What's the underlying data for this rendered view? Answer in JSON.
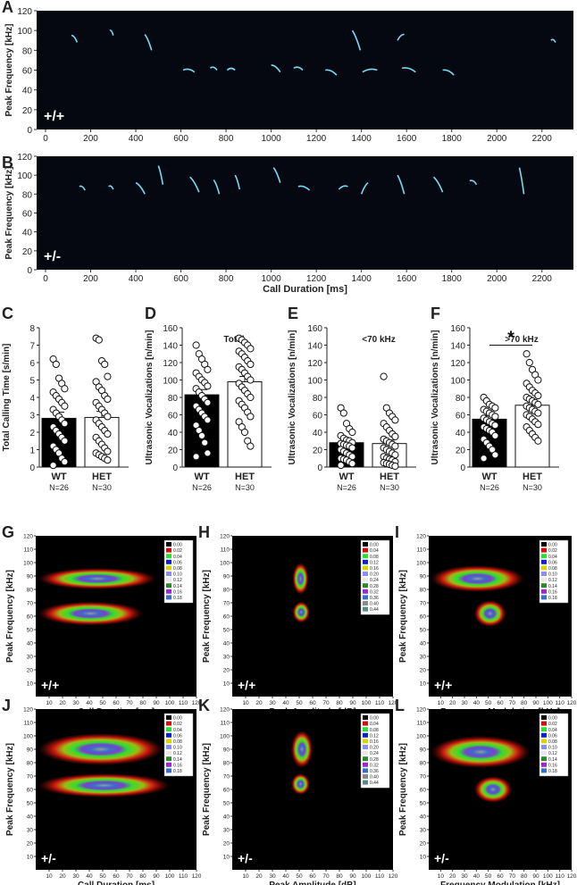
{
  "panel_letters": [
    "A",
    "B",
    "C",
    "D",
    "E",
    "F",
    "G",
    "H",
    "I",
    "J",
    "K",
    "L"
  ],
  "spectrograms": [
    {
      "letter": "A",
      "genotype": "+/+",
      "ylabel": "Peak Frequency [kHz]",
      "yticks": [
        "0",
        "20",
        "40",
        "60",
        "80",
        "100",
        "120"
      ],
      "xticks": [
        "0",
        "200",
        "400",
        "600",
        "800",
        "1000",
        "1200",
        "1400",
        "1600",
        "1800",
        "2000",
        "2200"
      ],
      "xlabel": ""
    },
    {
      "letter": "B",
      "genotype": "+/-",
      "ylabel": "Peak Frequency [kHz]",
      "yticks": [
        "0",
        "20",
        "40",
        "60",
        "80",
        "100",
        "120"
      ],
      "xticks": [
        "0",
        "200",
        "400",
        "600",
        "800",
        "1000",
        "1200",
        "1400",
        "1600",
        "1800",
        "2000",
        "2200"
      ],
      "xlabel": "Call Duration [ms]"
    }
  ],
  "chart_data": [
    {
      "type": "bar",
      "panel": "C",
      "title": "",
      "ylabel": "Total Calling Time [s/min]",
      "ylim": [
        0,
        8
      ],
      "yticks": [
        "0",
        "1",
        "2",
        "3",
        "4",
        "5",
        "6",
        "7",
        "8"
      ],
      "categories": [
        "WT",
        "HET"
      ],
      "ns": [
        "N=26",
        "N=30"
      ],
      "values": [
        2.8,
        2.85
      ],
      "errors": [
        0.35,
        0.35
      ],
      "points": [
        [
          6.2,
          5.9,
          5.1,
          4.8,
          4.5,
          4.3,
          4.1,
          3.9,
          3.7,
          3.5,
          3.3,
          3.1,
          2.9,
          2.7,
          2.5,
          2.3,
          2.1,
          1.9,
          1.7,
          1.5,
          1.2,
          1.0,
          0.8,
          0.5,
          0.3,
          0.1
        ],
        [
          7.4,
          7.3,
          6.1,
          5.9,
          5.2,
          4.9,
          4.6,
          4.4,
          4.1,
          3.9,
          3.7,
          3.5,
          3.3,
          3.1,
          2.9,
          2.7,
          2.5,
          2.3,
          2.1,
          1.9,
          1.7,
          1.5,
          1.3,
          1.1,
          0.9,
          0.8,
          0.7,
          0.6,
          0.5,
          0.4
        ]
      ],
      "star": ""
    },
    {
      "type": "bar",
      "panel": "D",
      "title": "Total",
      "ylabel": "Ultrasonic Vocalizations [n/min]",
      "ylim": [
        0,
        160
      ],
      "yticks": [
        "0",
        "20",
        "40",
        "60",
        "80",
        "100",
        "120",
        "140",
        "160"
      ],
      "categories": [
        "WT",
        "HET"
      ],
      "ns": [
        "N=26",
        "N=30"
      ],
      "values": [
        83,
        98
      ],
      "errors": [
        6,
        6
      ],
      "points": [
        [
          140,
          130,
          124,
          118,
          112,
          108,
          104,
          100,
          97,
          93,
          90,
          86,
          82,
          78,
          74,
          70,
          66,
          62,
          58,
          54,
          48,
          42,
          36,
          28,
          16,
          12
        ],
        [
          148,
          146,
          143,
          140,
          136,
          133,
          130,
          126,
          122,
          118,
          115,
          112,
          108,
          104,
          100,
          96,
          92,
          88,
          84,
          80,
          76,
          72,
          68,
          63,
          58,
          52,
          46,
          40,
          30,
          24
        ]
      ],
      "star": ""
    },
    {
      "type": "bar",
      "panel": "E",
      "title": "<70 kHz",
      "ylabel": "Ultrasonic Vocalizations [n/min]",
      "ylim": [
        0,
        160
      ],
      "yticks": [
        "0",
        "20",
        "40",
        "60",
        "80",
        "100",
        "120",
        "140",
        "160"
      ],
      "categories": [
        "WT",
        "HET"
      ],
      "ns": [
        "N=26",
        "N=30"
      ],
      "values": [
        28,
        27
      ],
      "errors": [
        4,
        4
      ],
      "points": [
        [
          68,
          62,
          50,
          44,
          40,
          36,
          33,
          31,
          30,
          28,
          27,
          26,
          25,
          24,
          22,
          20,
          18,
          16,
          14,
          12,
          10,
          9,
          8,
          6,
          4,
          2
        ],
        [
          104,
          68,
          62,
          58,
          54,
          50,
          46,
          42,
          38,
          35,
          32,
          30,
          28,
          26,
          24,
          22,
          20,
          18,
          16,
          14,
          12,
          10,
          9,
          8,
          6,
          5,
          4,
          3,
          2,
          1
        ]
      ],
      "star": ""
    },
    {
      "type": "bar",
      "panel": "F",
      "title": ">70 kHz",
      "ylabel": "Ultrasonic Vocalizations [n/min]",
      "ylim": [
        0,
        160
      ],
      "yticks": [
        "0",
        "20",
        "40",
        "60",
        "80",
        "100",
        "120",
        "140",
        "160"
      ],
      "categories": [
        "WT",
        "HET"
      ],
      "ns": [
        "N=26",
        "N=30"
      ],
      "values": [
        55,
        71
      ],
      "errors": [
        4,
        5
      ],
      "points": [
        [
          80,
          76,
          72,
          70,
          68,
          66,
          64,
          62,
          60,
          58,
          56,
          54,
          52,
          50,
          48,
          46,
          44,
          42,
          40,
          36,
          32,
          28,
          24,
          20,
          14,
          10
        ],
        [
          130,
          120,
          112,
          106,
          100,
          96,
          92,
          88,
          85,
          82,
          80,
          78,
          76,
          74,
          72,
          70,
          68,
          66,
          64,
          62,
          60,
          58,
          55,
          52,
          49,
          46,
          42,
          38,
          34,
          30
        ]
      ],
      "star": "*"
    },
    {
      "type": "heatmap",
      "panel": "G",
      "genotype": "+/+",
      "xlabel": "Call Duration [ms]",
      "ylabel": "Peak Frequency [kHz]",
      "xlim": [
        0,
        120
      ],
      "ylim": [
        0,
        120
      ],
      "xticks": [
        "10",
        "20",
        "30",
        "40",
        "50",
        "60",
        "70",
        "80",
        "90",
        "100",
        "110",
        "120"
      ],
      "yticks": [
        "10",
        "20",
        "30",
        "40",
        "50",
        "60",
        "70",
        "80",
        "90",
        "100",
        "110",
        "120"
      ],
      "legend": [
        "0.00",
        "0.02",
        "0.04",
        "0.06",
        "0.08",
        "0.10",
        "0.12",
        "0.14",
        "0.16",
        "0.18"
      ],
      "blobs": [
        {
          "x": [
            2,
            90
          ],
          "y": [
            88,
            8
          ],
          "peak": 8
        },
        {
          "x": [
            2,
            80
          ],
          "y": [
            62,
            9
          ],
          "peak": 8
        }
      ]
    },
    {
      "type": "heatmap",
      "panel": "H",
      "genotype": "+/+",
      "xlabel": "Peak Amplitude [dB]",
      "ylabel": "Peak Frequency [kHz]",
      "xlim": [
        0,
        120
      ],
      "ylim": [
        0,
        120
      ],
      "xticks": [
        "10",
        "20",
        "30",
        "40",
        "50",
        "60",
        "70",
        "80",
        "90",
        "100",
        "110",
        "120"
      ],
      "yticks": [
        "10",
        "20",
        "30",
        "40",
        "50",
        "60",
        "70",
        "80",
        "90",
        "100",
        "110",
        "120"
      ],
      "legend": [
        "0.00",
        "0.04",
        "0.08",
        "0.12",
        "0.16",
        "0.20",
        "0.24",
        "0.28",
        "0.32",
        "0.36",
        "0.40",
        "0.44"
      ],
      "blobs": [
        {
          "x": [
            45,
            57
          ],
          "y": [
            88,
            12
          ],
          "peak": 10
        },
        {
          "x": [
            45,
            58
          ],
          "y": [
            63,
            8
          ],
          "peak": 8
        }
      ]
    },
    {
      "type": "heatmap",
      "panel": "I",
      "genotype": "+/+",
      "xlabel": "Frequency Modulation [kHz]",
      "ylabel": "Peak Frequency [kHz]",
      "xlim": [
        0,
        120
      ],
      "ylim": [
        0,
        120
      ],
      "xticks": [
        "10",
        "20",
        "30",
        "40",
        "50",
        "60",
        "70",
        "80",
        "90",
        "100",
        "110",
        "120"
      ],
      "yticks": [
        "10",
        "20",
        "30",
        "40",
        "50",
        "60",
        "70",
        "80",
        "90",
        "100",
        "110",
        "120"
      ],
      "legend": [
        "0.00",
        "0.02",
        "0.04",
        "0.06",
        "0.08",
        "0.10",
        "0.12",
        "0.14",
        "0.16",
        "0.18"
      ],
      "blobs": [
        {
          "x": [
            2,
            80
          ],
          "y": [
            88,
            10
          ],
          "peak": 8
        },
        {
          "x": [
            38,
            65
          ],
          "y": [
            62,
            10
          ],
          "peak": 7
        }
      ]
    },
    {
      "type": "heatmap",
      "panel": "J",
      "genotype": "+/-",
      "xlabel": "Call Duration [ms]",
      "ylabel": "Peak Frequency [kHz]",
      "xlim": [
        0,
        120
      ],
      "ylim": [
        0,
        120
      ],
      "xticks": [
        "10",
        "20",
        "30",
        "40",
        "50",
        "60",
        "70",
        "80",
        "90",
        "100",
        "110",
        "120"
      ],
      "yticks": [
        "10",
        "20",
        "30",
        "40",
        "50",
        "60",
        "70",
        "80",
        "90",
        "100",
        "110",
        "120"
      ],
      "legend": [
        "0.00",
        "0.02",
        "0.04",
        "0.06",
        "0.08",
        "0.10",
        "0.12",
        "0.14",
        "0.16",
        "0.18"
      ],
      "blobs": [
        {
          "x": [
            2,
            95
          ],
          "y": [
            90,
            12
          ],
          "peak": 9
        },
        {
          "x": [
            2,
            100
          ],
          "y": [
            63,
            9
          ],
          "peak": 7
        }
      ]
    },
    {
      "type": "heatmap",
      "panel": "K",
      "genotype": "+/-",
      "xlabel": "Peak Amplitude [dB]",
      "ylabel": "Peak Frequency [kHz]",
      "xlim": [
        0,
        120
      ],
      "ylim": [
        0,
        120
      ],
      "xticks": [
        "10",
        "20",
        "30",
        "40",
        "50",
        "60",
        "70",
        "80",
        "90",
        "100",
        "110",
        "120"
      ],
      "yticks": [
        "10",
        "20",
        "30",
        "40",
        "50",
        "60",
        "70",
        "80",
        "90",
        "100",
        "110",
        "120"
      ],
      "legend": [
        "0.00",
        "0.04",
        "0.08",
        "0.12",
        "0.16",
        "0.20",
        "0.24",
        "0.28",
        "0.32",
        "0.36",
        "0.40",
        "0.44"
      ],
      "blobs": [
        {
          "x": [
            44,
            60
          ],
          "y": [
            90,
            14
          ],
          "peak": 11
        },
        {
          "x": [
            44,
            58
          ],
          "y": [
            64,
            8
          ],
          "peak": 7
        }
      ]
    },
    {
      "type": "heatmap",
      "panel": "L",
      "genotype": "+/-",
      "xlabel": "Frequency Modulation [kHz]",
      "ylabel": "Peak Frequency [kHz]",
      "xlim": [
        0,
        120
      ],
      "ylim": [
        0,
        120
      ],
      "xticks": [
        "10",
        "20",
        "30",
        "40",
        "50",
        "60",
        "70",
        "80",
        "90",
        "100",
        "110",
        "120"
      ],
      "yticks": [
        "10",
        "20",
        "30",
        "40",
        "50",
        "60",
        "70",
        "80",
        "90",
        "100",
        "110",
        "120"
      ],
      "legend": [
        "0.00",
        "0.02",
        "0.04",
        "0.06",
        "0.08",
        "0.10",
        "0.12",
        "0.14",
        "0.16",
        "0.18"
      ],
      "blobs": [
        {
          "x": [
            2,
            85
          ],
          "y": [
            88,
            12
          ],
          "peak": 8
        },
        {
          "x": [
            38,
            70
          ],
          "y": [
            60,
            10
          ],
          "peak": 7
        }
      ]
    }
  ]
}
